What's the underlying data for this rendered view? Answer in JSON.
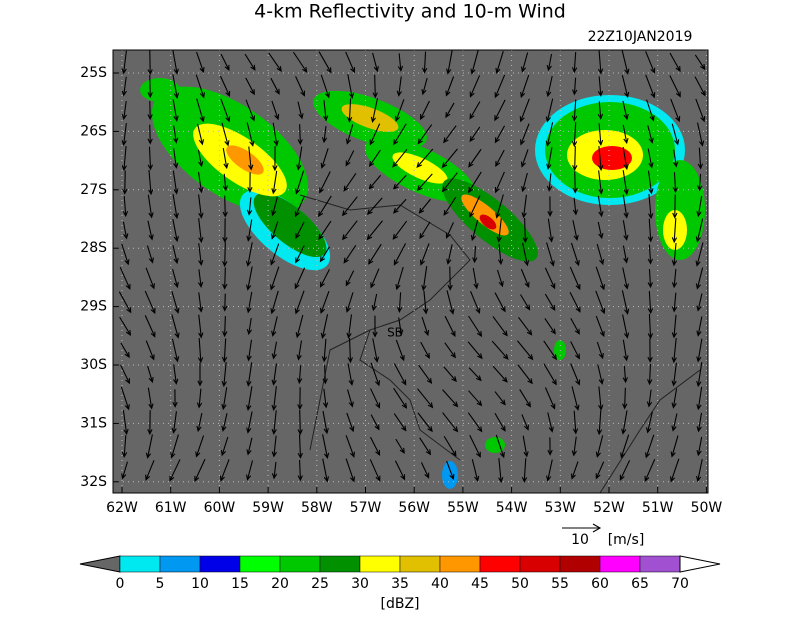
{
  "title": "4-km Reflectivity and 10-m Wind",
  "timestamp": "22Z10JAN2019",
  "lat_labels": [
    "25S",
    "26S",
    "27S",
    "28S",
    "29S",
    "30S",
    "31S",
    "32S"
  ],
  "lon_labels": [
    "62W",
    "61W",
    "60W",
    "59W",
    "58W",
    "57W",
    "56W",
    "55W",
    "54W",
    "53W",
    "52W",
    "51W",
    "50W"
  ],
  "place_label": "SB",
  "wind_reference": {
    "value": "10",
    "unit": "[m/s]"
  },
  "colorbar": {
    "levels": [
      0,
      5,
      10,
      15,
      20,
      25,
      30,
      35,
      40,
      45,
      50,
      55,
      60,
      65,
      70
    ],
    "colors": [
      "#00e8f0",
      "#0098f0",
      "#0000e8",
      "#00ff00",
      "#00c800",
      "#009000",
      "#ffff00",
      "#e0c000",
      "#ff9800",
      "#ff0000",
      "#d80000",
      "#b00000",
      "#ff00ff",
      "#a050d0"
    ],
    "unit": "[dBZ]"
  }
}
